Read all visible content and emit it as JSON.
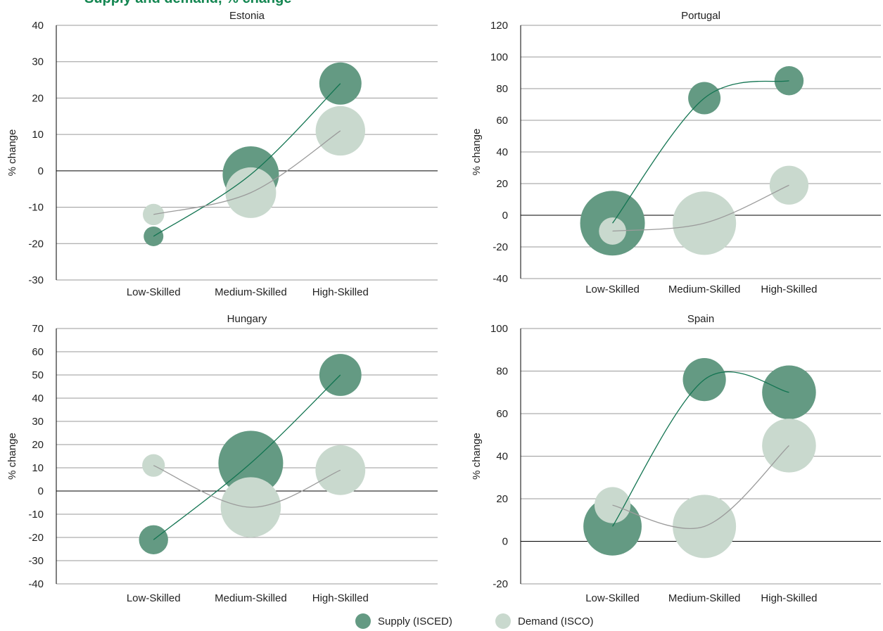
{
  "page": {
    "title_fragment": "Supply and demand, % change"
  },
  "legend": {
    "supply_label": "Supply (ISCED)",
    "demand_label": "Demand (ISCO)"
  },
  "colors": {
    "supply": "#649a83",
    "supply_line": "#127451",
    "demand": "#c9d9ce",
    "demand_line": "#9b9b9b"
  },
  "chart_data": [
    {
      "type": "bubble",
      "title": "Estonia",
      "ylabel": "% change",
      "ylim": [
        -30,
        40
      ],
      "yticks": [
        -30,
        -20,
        -10,
        0,
        10,
        20,
        30,
        40
      ],
      "categories": [
        "Low-Skilled",
        "Medium-Skilled",
        "High-Skilled"
      ],
      "series": [
        {
          "name": "Supply (ISCED)",
          "values": [
            -18,
            -1,
            24
          ],
          "sizes": [
            0.35,
            1.0,
            0.75
          ]
        },
        {
          "name": "Demand (ISCO)",
          "values": [
            -12,
            -6,
            11
          ],
          "sizes": [
            0.38,
            0.9,
            0.88
          ]
        }
      ]
    },
    {
      "type": "bubble",
      "title": "Portugal",
      "ylabel": "% change",
      "ylim": [
        -40,
        120
      ],
      "yticks": [
        -40,
        -20,
        0,
        20,
        40,
        60,
        80,
        100,
        120
      ],
      "categories": [
        "Low-Skilled",
        "Medium-Skilled",
        "High-Skilled"
      ],
      "series": [
        {
          "name": "Supply (ISCED)",
          "values": [
            -5,
            74,
            85
          ],
          "sizes": [
            1.0,
            0.5,
            0.45
          ]
        },
        {
          "name": "Demand (ISCO)",
          "values": [
            -10,
            -5,
            19
          ],
          "sizes": [
            0.42,
            0.98,
            0.6
          ]
        }
      ]
    },
    {
      "type": "bubble",
      "title": "Hungary",
      "ylabel": "% change",
      "ylim": [
        -40,
        70
      ],
      "yticks": [
        -40,
        -30,
        -20,
        -10,
        0,
        10,
        20,
        30,
        40,
        50,
        60,
        70
      ],
      "categories": [
        "Low-Skilled",
        "Medium-Skilled",
        "High-Skilled"
      ],
      "series": [
        {
          "name": "Supply (ISCED)",
          "values": [
            -21,
            12,
            50
          ],
          "sizes": [
            0.45,
            1.0,
            0.65
          ]
        },
        {
          "name": "Demand (ISCO)",
          "values": [
            11,
            -7,
            9
          ],
          "sizes": [
            0.35,
            0.93,
            0.77
          ]
        }
      ]
    },
    {
      "type": "bubble",
      "title": "Spain",
      "ylabel": "% change",
      "ylim": [
        -20,
        100
      ],
      "yticks": [
        -20,
        0,
        20,
        40,
        60,
        80,
        100
      ],
      "categories": [
        "Low-Skilled",
        "Medium-Skilled",
        "High-Skilled"
      ],
      "series": [
        {
          "name": "Supply (ISCED)",
          "values": [
            7,
            76,
            70
          ],
          "sizes": [
            0.92,
            0.68,
            0.85
          ]
        },
        {
          "name": "Demand (ISCO)",
          "values": [
            17,
            7,
            45
          ],
          "sizes": [
            0.57,
            1.0,
            0.85
          ]
        }
      ]
    }
  ]
}
